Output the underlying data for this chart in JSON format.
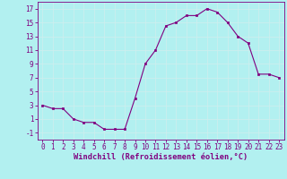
{
  "x": [
    0,
    1,
    2,
    3,
    4,
    5,
    6,
    7,
    8,
    9,
    10,
    11,
    12,
    13,
    14,
    15,
    16,
    17,
    18,
    19,
    20,
    21,
    22,
    23
  ],
  "y": [
    3,
    2.5,
    2.5,
    1,
    0.5,
    0.5,
    -0.5,
    -0.5,
    -0.5,
    4,
    9,
    11,
    14.5,
    15,
    16,
    16,
    17,
    16.5,
    15,
    13,
    12,
    7.5,
    7.5,
    7
  ],
  "line_color": "#800080",
  "marker_color": "#800080",
  "bg_color": "#b2f0f0",
  "grid_color": "#cceeee",
  "xlabel": "Windchill (Refroidissement éolien,°C)",
  "xlabel_color": "#800080",
  "ylim": [
    -2,
    18
  ],
  "xlim": [
    -0.5,
    23.5
  ],
  "yticks": [
    -1,
    1,
    3,
    5,
    7,
    9,
    11,
    13,
    15,
    17
  ],
  "xticks": [
    0,
    1,
    2,
    3,
    4,
    5,
    6,
    7,
    8,
    9,
    10,
    11,
    12,
    13,
    14,
    15,
    16,
    17,
    18,
    19,
    20,
    21,
    22,
    23
  ],
  "tick_color": "#800080",
  "tick_fontsize": 5.5,
  "xlabel_fontsize": 6.2,
  "spine_color": "#800080"
}
